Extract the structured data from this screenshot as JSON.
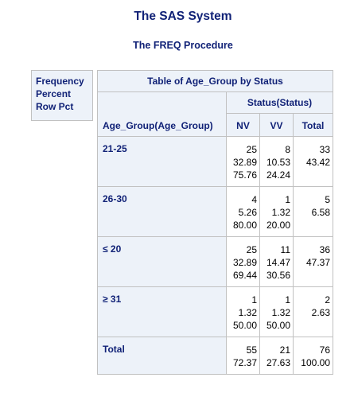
{
  "system_title": "The SAS System",
  "procedure_title": "The FREQ Procedure",
  "legend": [
    "Frequency",
    "Percent",
    "Row Pct"
  ],
  "table": {
    "title": "Table of Age_Group by Status",
    "column_group_label": "Status(Status)",
    "row_header_label": "Age_Group(Age_Group)",
    "columns": [
      "NV",
      "VV",
      "Total"
    ],
    "rows": [
      {
        "label": "21-25",
        "cells": [
          [
            "25",
            "32.89",
            "75.76"
          ],
          [
            "8",
            "10.53",
            "24.24"
          ],
          [
            "33",
            "43.42"
          ]
        ]
      },
      {
        "label": "26-30",
        "cells": [
          [
            "4",
            "5.26",
            "80.00"
          ],
          [
            "1",
            "1.32",
            "20.00"
          ],
          [
            "5",
            "6.58"
          ]
        ]
      },
      {
        "label": "≤ 20",
        "cells": [
          [
            "25",
            "32.89",
            "69.44"
          ],
          [
            "11",
            "14.47",
            "30.56"
          ],
          [
            "36",
            "47.37"
          ]
        ]
      },
      {
        "label": "≥ 31",
        "cells": [
          [
            "1",
            "1.32",
            "50.00"
          ],
          [
            "1",
            "1.32",
            "50.00"
          ],
          [
            "2",
            "2.63"
          ]
        ]
      },
      {
        "label": "Total",
        "cells": [
          [
            "55",
            "72.37"
          ],
          [
            "21",
            "27.63"
          ],
          [
            "76",
            "100.00"
          ]
        ]
      }
    ]
  }
}
